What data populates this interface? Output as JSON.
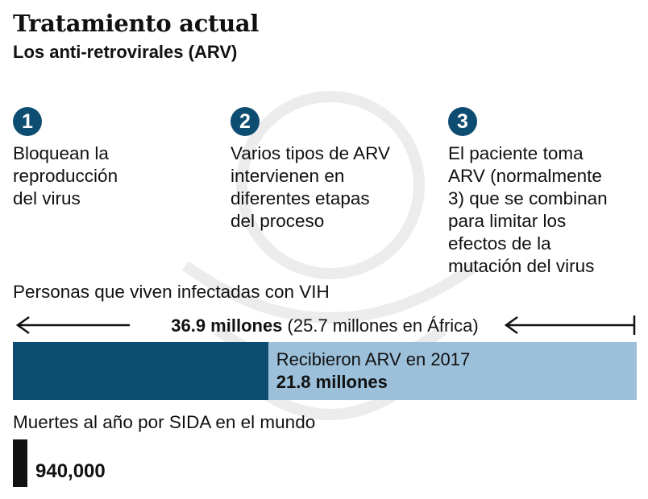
{
  "title": "Tratamiento actual",
  "subtitle": "Los anti-retrovirales (ARV)",
  "steps": [
    {
      "number": "1",
      "text": "Bloquean la\nreproducción\ndel virus"
    },
    {
      "number": "2",
      "text": "Varios tipos de ARV\nintervienen en\ndiferentes etapas\ndel proceso"
    },
    {
      "number": "3",
      "text": "El paciente toma\nARV (normalmente\n3) que se combinan\npara limitar los\nefectos de la\nmutación del virus"
    }
  ],
  "colors": {
    "dark_blue": "#0d4d72",
    "light_blue": "#9cc0da",
    "black": "#111111"
  },
  "chart_data": [
    {
      "type": "bar",
      "title": "Personas que viven infectadas con VIH",
      "orientation": "horizontal",
      "total": {
        "value": 36.9,
        "label_bold": "36.9 millones",
        "label_rest": " (25.7 millones en África)"
      },
      "segment": {
        "value": 21.8,
        "name": "Recibieron ARV en 2017",
        "value_label": "21.8 millones"
      },
      "unit": "millones"
    },
    {
      "type": "bar",
      "title": "Muertes al año por SIDA en el mundo",
      "value": 940000,
      "value_label": "940,000"
    }
  ]
}
